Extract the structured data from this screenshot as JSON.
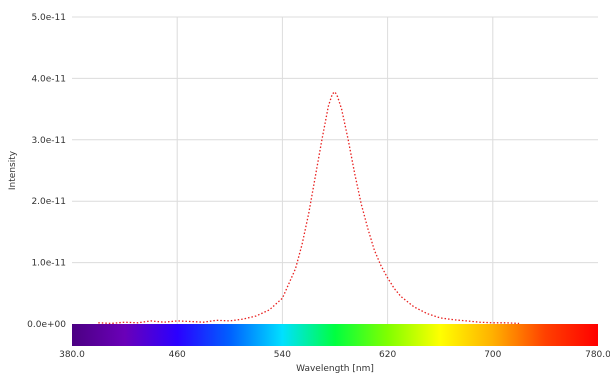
{
  "chart_data": {
    "type": "line",
    "xlabel": "Wavelength [nm]",
    "ylabel": "Intensity",
    "xlim": [
      380,
      780
    ],
    "ylim": [
      0,
      5e-11
    ],
    "grid": true,
    "legend": "none",
    "color_bar": "visible-spectrum",
    "line_color": "#e8201f",
    "line_style": "dotted",
    "x_ticks": [
      {
        "value": 380,
        "label": "380.0"
      },
      {
        "value": 460,
        "label": "460"
      },
      {
        "value": 540,
        "label": "540"
      },
      {
        "value": 620,
        "label": "620"
      },
      {
        "value": 700,
        "label": "700"
      },
      {
        "value": 780,
        "label": "780.0"
      }
    ],
    "y_ticks": [
      {
        "value": 0,
        "label": "0.0e+00"
      },
      {
        "value": 1e-11,
        "label": "1.0e-11"
      },
      {
        "value": 2e-11,
        "label": "2.0e-11"
      },
      {
        "value": 3e-11,
        "label": "3.0e-11"
      },
      {
        "value": 4e-11,
        "label": "4.0e-11"
      },
      {
        "value": 5e-11,
        "label": "5.0e-11"
      }
    ],
    "series": [
      {
        "x": [
          400,
          410,
          420,
          430,
          440,
          450,
          460,
          470,
          480,
          490,
          500,
          510,
          520,
          530,
          540,
          550,
          555,
          560,
          565,
          570,
          575,
          578,
          580,
          582,
          585,
          590,
          595,
          600,
          605,
          610,
          615,
          620,
          625,
          630,
          640,
          650,
          660,
          670,
          680,
          690,
          700,
          710,
          720
        ],
        "y": [
          2e-13,
          1e-13,
          3e-13,
          2e-13,
          5e-13,
          3e-13,
          5e-13,
          4e-13,
          3e-13,
          6e-13,
          5e-13,
          8e-13,
          1.3e-12,
          2.3e-12,
          4.2e-12,
          9e-12,
          1.3e-11,
          1.8e-11,
          2.4e-11,
          3e-11,
          3.55e-11,
          3.75e-11,
          3.78e-11,
          3.7e-11,
          3.5e-11,
          3e-11,
          2.45e-11,
          1.95e-11,
          1.55e-11,
          1.2e-11,
          9.5e-12,
          7.5e-12,
          5.8e-12,
          4.5e-12,
          2.8e-12,
          1.7e-12,
          1e-12,
          7e-13,
          5e-13,
          3e-13,
          2e-13,
          2e-13,
          1e-13
        ]
      }
    ]
  }
}
